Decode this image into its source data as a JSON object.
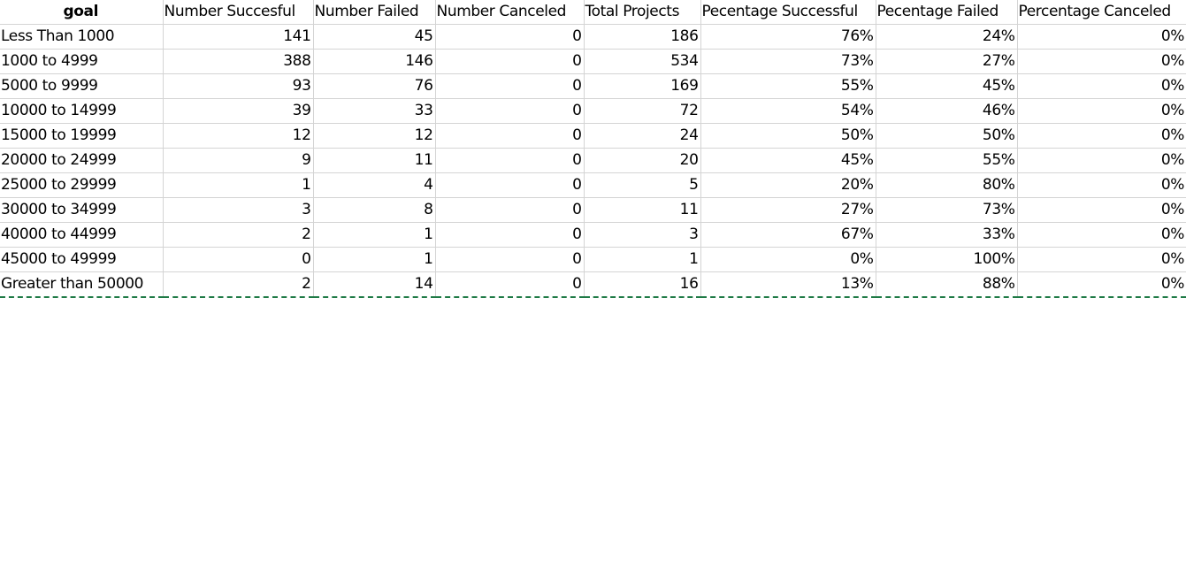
{
  "headers": [
    "goal",
    "Number Succesful",
    "Number Failed",
    "Number Canceled",
    "Total Projects",
    "Pecentage Successful",
    "Pecentage Failed",
    "Percentage Canceled"
  ],
  "rows": [
    [
      "Less Than 1000",
      "141",
      "45",
      "0",
      "186",
      "76%",
      "24%",
      "0%"
    ],
    [
      "1000 to 4999",
      "388",
      "146",
      "0",
      "534",
      "73%",
      "27%",
      "0%"
    ],
    [
      "5000 to 9999",
      "93",
      "76",
      "0",
      "169",
      "55%",
      "45%",
      "0%"
    ],
    [
      "10000 to 14999",
      "39",
      "33",
      "0",
      "72",
      "54%",
      "46%",
      "0%"
    ],
    [
      "15000 to 19999",
      "12",
      "12",
      "0",
      "24",
      "50%",
      "50%",
      "0%"
    ],
    [
      "20000 to 24999",
      "9",
      "11",
      "0",
      "20",
      "45%",
      "55%",
      "0%"
    ],
    [
      "25000 to 29999",
      "1",
      "4",
      "0",
      "5",
      "20%",
      "80%",
      "0%"
    ],
    [
      "30000 to 34999",
      "3",
      "8",
      "0",
      "11",
      "27%",
      "73%",
      "0%"
    ],
    [
      "40000 to 44999",
      "2",
      "1",
      "0",
      "3",
      "67%",
      "33%",
      "0%"
    ],
    [
      "45000 to 49999",
      "0",
      "1",
      "0",
      "1",
      "0%",
      "100%",
      "0%"
    ],
    [
      "Greater than 50000",
      "2",
      "14",
      "0",
      "16",
      "13%",
      "88%",
      "0%"
    ]
  ],
  "colors": {
    "gridline": "#d4d4d4",
    "selection_border": "#1e7a45"
  }
}
